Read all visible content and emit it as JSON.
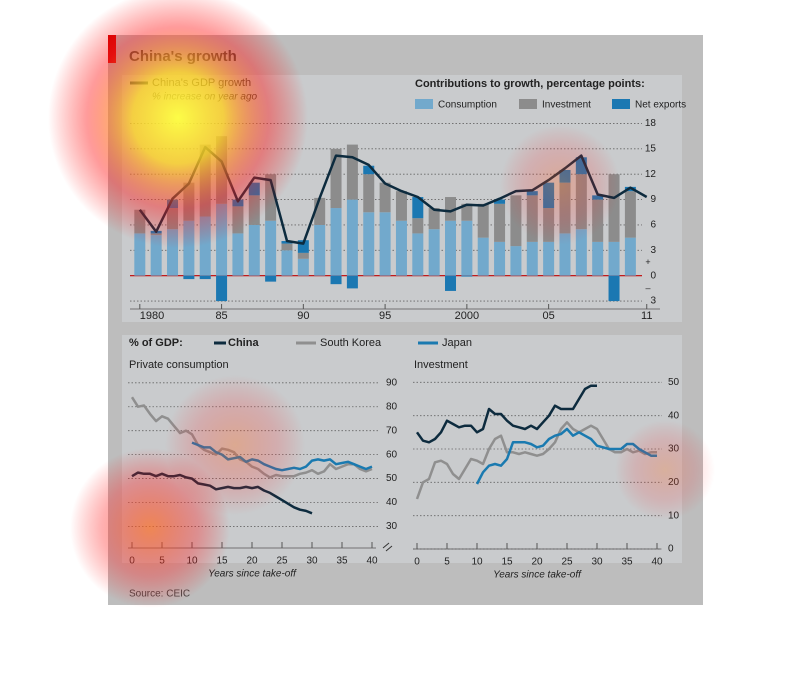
{
  "title": "China's growth",
  "source": "Source: CEIC",
  "legend_label": "% of GDP:",
  "chart_data": [
    {
      "type": "bar",
      "stacked": true,
      "subtitle": "Contributions to growth, percentage points:",
      "x": [
        1980,
        1981,
        1982,
        1983,
        1984,
        1985,
        1986,
        1987,
        1988,
        1989,
        1990,
        1991,
        1992,
        1993,
        1994,
        1995,
        1996,
        1997,
        1998,
        1999,
        2000,
        2001,
        2002,
        2003,
        2004,
        2005,
        2006,
        2007,
        2008,
        2009,
        2010,
        2011
      ],
      "series": [
        {
          "name": "Consumption",
          "color": "#72a9cc",
          "values": [
            5.0,
            4.8,
            5.5,
            6.5,
            7.0,
            8.5,
            5.0,
            6.0,
            6.5,
            3.0,
            2.0,
            6.0,
            8.0,
            9.0,
            7.5,
            7.5,
            6.5,
            5.0,
            5.5,
            6.5,
            6.5,
            4.5,
            4.0,
            3.5,
            4.0,
            4.0,
            5.0,
            5.5,
            4.0,
            4.0,
            4.5,
            null
          ]
        },
        {
          "name": "Investment",
          "color": "#8c8c8c",
          "values": [
            2.8,
            0.2,
            2.5,
            4.5,
            8.5,
            8.0,
            3.2,
            3.5,
            5.5,
            0.8,
            0.7,
            3.2,
            7.0,
            6.5,
            4.5,
            3.5,
            3.5,
            1.8,
            2.5,
            2.8,
            2.0,
            4.0,
            4.5,
            6.0,
            5.5,
            4.0,
            6.0,
            6.5,
            5.0,
            8.0,
            5.5,
            null
          ]
        },
        {
          "name": "Net exports",
          "color": "#1b78b2",
          "values": [
            0,
            0.3,
            1.0,
            -0.4,
            -0.4,
            -3.0,
            0.8,
            1.5,
            -0.7,
            0.3,
            1.5,
            0,
            -1.0,
            -1.5,
            1.0,
            0,
            0,
            2.5,
            0,
            -1.8,
            -0.1,
            0,
            0.5,
            0,
            0.5,
            3.0,
            1.5,
            2.0,
            0.5,
            -3.0,
            0.5,
            null
          ]
        }
      ],
      "line": {
        "name": "China's GDP growth",
        "note": "% increase on year ago",
        "color": "#0d2b3e",
        "values": [
          7.8,
          5.2,
          9.1,
          10.9,
          15.2,
          13.5,
          8.8,
          11.6,
          11.3,
          4.1,
          3.8,
          9.2,
          14.2,
          14.0,
          13.1,
          10.9,
          10.0,
          9.3,
          7.8,
          7.6,
          8.4,
          8.3,
          9.1,
          10.0,
          10.1,
          11.3,
          12.7,
          14.2,
          9.6,
          9.2,
          10.4,
          9.3
        ]
      },
      "xlim": [
        1979.4,
        2012.3
      ],
      "xticks": [
        1980,
        {
          "value": 1985,
          "label": "85"
        },
        {
          "value": 1990,
          "label": "90"
        },
        {
          "value": 1995,
          "label": "95"
        },
        2000,
        {
          "value": 2005,
          "label": "05"
        },
        {
          "value": 2011,
          "label": "11"
        }
      ],
      "ylim": [
        -5,
        19
      ],
      "yticks": [
        18,
        15,
        12,
        9,
        6,
        3,
        0,
        {
          "value": -3,
          "label": "3"
        }
      ],
      "sign_labels": [
        "+",
        "–"
      ],
      "grid": true
    },
    {
      "type": "line",
      "title": "Private consumption",
      "xlabel": "Years since take-off",
      "x": [
        0,
        1,
        2,
        3,
        4,
        5,
        6,
        7,
        8,
        9,
        10,
        11,
        12,
        13,
        14,
        15,
        16,
        17,
        18,
        19,
        20,
        21,
        22,
        23,
        24,
        25,
        26,
        27,
        28,
        29,
        30,
        31,
        32,
        33,
        34,
        35,
        36,
        37,
        38,
        39,
        40
      ],
      "series": [
        {
          "name": "China",
          "color": "#0d2b3e",
          "values": [
            51,
            52.5,
            52,
            52,
            51,
            52,
            51,
            51,
            51.5,
            50.5,
            50,
            48,
            47.5,
            47,
            45.5,
            46,
            46.5,
            46,
            46,
            46.5,
            46,
            46.5,
            45,
            44,
            42.5,
            41,
            39.5,
            38,
            37,
            36.5,
            35.5,
            null,
            null,
            null,
            null,
            null,
            null,
            null,
            null,
            null,
            null
          ]
        },
        {
          "name": "South Korea",
          "color": "#8f8f8f",
          "values": [
            84,
            80,
            80.5,
            77,
            74,
            76,
            75,
            72,
            69,
            70,
            68.5,
            64,
            62,
            61,
            60,
            62.5,
            62,
            61,
            58,
            57,
            55,
            54,
            52,
            50.5,
            51.5,
            51,
            51,
            51,
            52,
            52.5,
            53.5,
            52,
            53,
            56,
            54,
            55,
            56,
            56,
            54,
            53,
            54
          ]
        },
        {
          "name": "Japan",
          "color": "#1a7ab0",
          "values": [
            null,
            null,
            null,
            null,
            null,
            null,
            null,
            null,
            null,
            null,
            65,
            64,
            63,
            63,
            61,
            60,
            58,
            58.5,
            59,
            57,
            58,
            57.5,
            56,
            55,
            54,
            53.5,
            54,
            54.5,
            54,
            55,
            57.5,
            58,
            57.5,
            58,
            56,
            56.5,
            57,
            56,
            55,
            54,
            55
          ]
        }
      ],
      "xlim": [
        0,
        40
      ],
      "xticks": [
        0,
        5,
        10,
        15,
        20,
        25,
        30,
        35,
        40
      ],
      "ylim": [
        21,
        92
      ],
      "yticks": [
        90,
        80,
        70,
        60,
        50,
        40,
        30
      ],
      "grid": true
    },
    {
      "type": "line",
      "title": "Investment",
      "xlabel": "Years since take-off",
      "x": [
        0,
        1,
        2,
        3,
        4,
        5,
        6,
        7,
        8,
        9,
        10,
        11,
        12,
        13,
        14,
        15,
        16,
        17,
        18,
        19,
        20,
        21,
        22,
        23,
        24,
        25,
        26,
        27,
        28,
        29,
        30,
        31,
        32,
        33,
        34,
        35,
        36,
        37,
        38,
        39,
        40
      ],
      "series": [
        {
          "name": "China",
          "color": "#0d2b3e",
          "values": [
            35,
            32.5,
            32,
            33,
            35,
            38.5,
            37.5,
            36.5,
            37,
            37,
            35,
            36,
            42,
            40.5,
            40.5,
            38.5,
            37,
            36.5,
            36,
            37,
            36,
            38,
            40,
            43,
            42,
            42,
            42,
            45,
            48,
            49,
            49,
            null,
            null,
            null,
            null,
            null,
            null,
            null,
            null,
            null,
            null
          ]
        },
        {
          "name": "South Korea",
          "color": "#8f8f8f",
          "values": [
            15,
            20,
            21,
            26,
            26.5,
            25.5,
            22.5,
            21,
            24,
            27,
            26.5,
            25.5,
            30,
            33,
            34,
            29,
            29,
            28.5,
            29,
            28.5,
            28,
            28.5,
            30,
            32,
            36,
            38,
            36,
            35,
            36,
            37,
            36,
            33,
            30,
            29,
            29,
            30,
            29,
            29.5,
            28.5,
            29,
            29
          ]
        },
        {
          "name": "Japan",
          "color": "#1a7ab0",
          "values": [
            null,
            null,
            null,
            null,
            null,
            null,
            null,
            null,
            null,
            null,
            19.5,
            23,
            25,
            25.5,
            25,
            27,
            32,
            32,
            32,
            31.5,
            30.5,
            31,
            33,
            34,
            34.5,
            36,
            34,
            35,
            34,
            33,
            31,
            30.5,
            30,
            30,
            30,
            31.5,
            31.5,
            30,
            29,
            28,
            28
          ]
        }
      ],
      "xlim": [
        0,
        40
      ],
      "xticks": [
        0,
        5,
        10,
        15,
        20,
        25,
        30,
        35,
        40
      ],
      "ylim": [
        0,
        51
      ],
      "yticks": [
        50,
        40,
        30,
        20,
        10,
        0
      ],
      "grid": true
    }
  ]
}
